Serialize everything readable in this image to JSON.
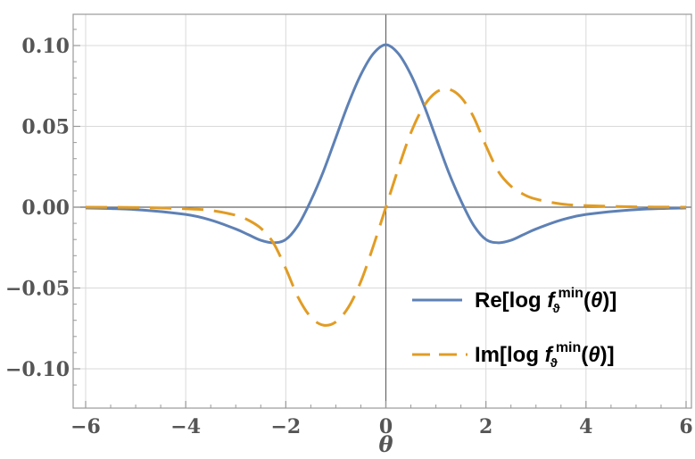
{
  "chart_data": {
    "type": "line",
    "title": "",
    "xlabel": "θ",
    "ylabel": "",
    "xlim": [
      -6,
      6
    ],
    "ylim": [
      -0.12,
      0.12
    ],
    "grid": true,
    "legend_position": "bottom-right",
    "x_ticks": [
      "−6",
      "−4",
      "−2",
      "0",
      "2",
      "4",
      "6"
    ],
    "y_ticks": [
      "−0.10",
      "−0.05",
      "0.00",
      "0.05",
      "0.10"
    ],
    "colors": {
      "re": "#5e81b5",
      "im": "#e19c24",
      "grid": "#d9d9d9",
      "frame": "#999999"
    },
    "series": [
      {
        "name": "Re[log f_ϑ^min(θ)]",
        "style": "solid",
        "x": [
          -6.0,
          -5.0,
          -4.0,
          -3.5,
          -3.0,
          -2.75,
          -2.5,
          -2.25,
          -2.0,
          -1.75,
          -1.5,
          -1.25,
          -1.0,
          -0.75,
          -0.5,
          -0.25,
          0.0,
          0.25,
          0.5,
          0.75,
          1.0,
          1.25,
          1.5,
          1.75,
          2.0,
          2.25,
          2.5,
          2.75,
          3.0,
          3.5,
          4.0,
          5.0,
          6.0
        ],
        "y": [
          -0.0005,
          -0.0015,
          -0.0045,
          -0.008,
          -0.0135,
          -0.017,
          -0.0205,
          -0.022,
          -0.02,
          -0.011,
          0.004,
          0.022,
          0.043,
          0.064,
          0.082,
          0.095,
          0.1005,
          0.095,
          0.082,
          0.064,
          0.043,
          0.022,
          0.004,
          -0.011,
          -0.02,
          -0.022,
          -0.0205,
          -0.017,
          -0.0135,
          -0.008,
          -0.0045,
          -0.0015,
          -0.0005
        ]
      },
      {
        "name": "Im[log f_ϑ^min(θ)]",
        "style": "dashed",
        "x": [
          -6.0,
          -5.0,
          -4.0,
          -3.5,
          -3.0,
          -2.75,
          -2.5,
          -2.25,
          -2.0,
          -1.75,
          -1.5,
          -1.25,
          -1.0,
          -0.75,
          -0.5,
          -0.25,
          0.0,
          0.25,
          0.5,
          0.75,
          1.0,
          1.25,
          1.5,
          1.75,
          2.0,
          2.25,
          2.5,
          2.75,
          3.0,
          3.5,
          4.0,
          5.0,
          6.0
        ],
        "y": [
          0.0,
          -0.0002,
          -0.001,
          -0.002,
          -0.005,
          -0.008,
          -0.013,
          -0.022,
          -0.038,
          -0.056,
          -0.068,
          -0.073,
          -0.071,
          -0.062,
          -0.046,
          -0.024,
          0.0,
          0.024,
          0.046,
          0.062,
          0.071,
          0.073,
          0.068,
          0.056,
          0.038,
          0.022,
          0.013,
          0.008,
          0.005,
          0.002,
          0.001,
          0.0002,
          0.0
        ]
      }
    ]
  },
  "legend": {
    "re_prefix": "Re[log ",
    "im_prefix": "Im[log ",
    "f": "f",
    "sup": "min",
    "sub": "ϑ",
    "arg_open": "(",
    "theta": "θ",
    "arg_close": ")]"
  }
}
